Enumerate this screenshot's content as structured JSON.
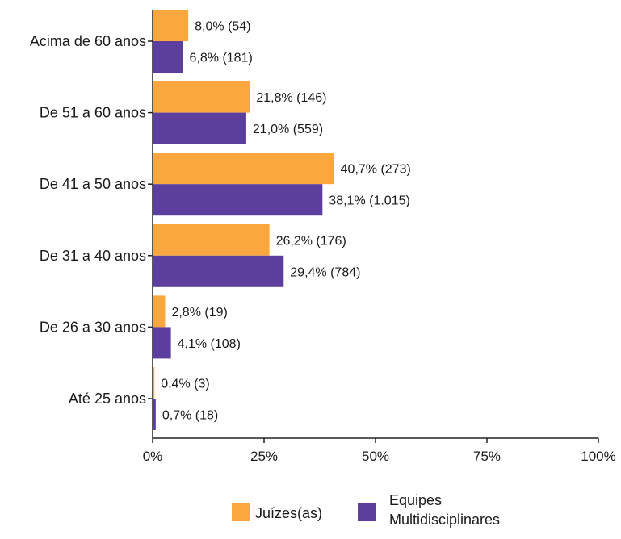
{
  "chart_data": {
    "type": "bar",
    "orientation": "horizontal",
    "categories": [
      "Acima de 60 anos",
      "De 51 a 60 anos",
      "De 41 a 50 anos",
      "De 31 a 40 anos",
      "De 26 a 30 anos",
      "Até 25 anos"
    ],
    "series": [
      {
        "name": "Juízes(as)",
        "color": "#F9A73E",
        "values": [
          8.0,
          21.8,
          40.7,
          26.2,
          2.8,
          0.4
        ],
        "labels": [
          "8,0% (54)",
          "21,8% (146)",
          "40,7% (273)",
          "26,2% (176)",
          "2,8% (19)",
          "0,4% (3)"
        ]
      },
      {
        "name": "Equipes Multidisciplinares",
        "color": "#5B3E9E",
        "values": [
          6.8,
          21.0,
          38.1,
          29.4,
          4.1,
          0.7
        ],
        "labels": [
          "6,8% (181)",
          "21,0% (559)",
          "38,1% (1.015)",
          "29,4% (784)",
          "4,1% (108)",
          "0,7% (18)"
        ]
      }
    ],
    "xlim": [
      0,
      100
    ],
    "xticks": [
      0,
      25,
      50,
      75,
      100
    ],
    "xtick_labels": [
      "0%",
      "25%",
      "50%",
      "75%",
      "100%"
    ],
    "grid": false,
    "legend_position": "bottom",
    "legend_labels": {
      "juizes": "Juízes(as)",
      "equipes_line1": "Equipes",
      "equipes_line2": "Multidisciplinares"
    }
  }
}
